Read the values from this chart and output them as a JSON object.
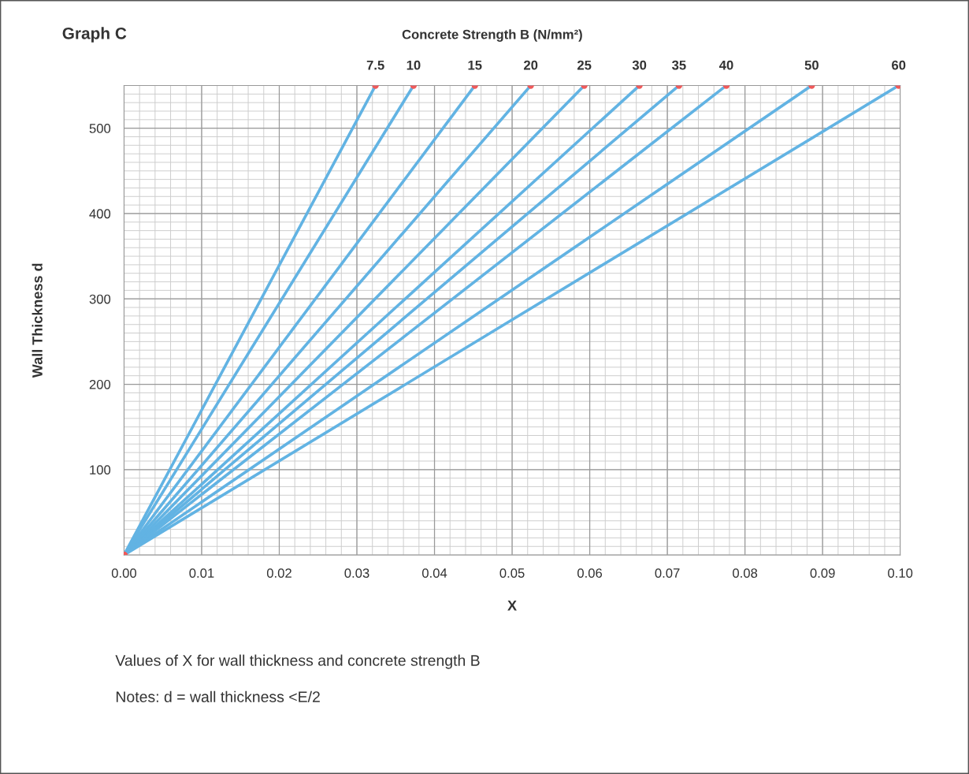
{
  "chart_data": {
    "type": "line",
    "title": "Graph C",
    "x2label": "Concrete Strength B (N/mm²)",
    "xlabel": "X",
    "ylabel": "Wall Thickness d",
    "xlim": [
      0,
      0.1
    ],
    "xticks": [
      {
        "value": 0,
        "label": "0.00"
      },
      {
        "value": 0.01,
        "label": "0.01"
      },
      {
        "value": 0.02,
        "label": "0.02"
      },
      {
        "value": 0.03,
        "label": "0.03"
      },
      {
        "value": 0.04,
        "label": "0.04"
      },
      {
        "value": 0.05,
        "label": "0.05"
      },
      {
        "value": 0.06,
        "label": "0.06"
      },
      {
        "value": 0.07,
        "label": "0.07"
      },
      {
        "value": 0.08,
        "label": "0.08"
      },
      {
        "value": 0.09,
        "label": "0.09"
      },
      {
        "value": 0.1,
        "label": "0.10"
      }
    ],
    "ylim": [
      0,
      550
    ],
    "yticks": [
      100,
      200,
      300,
      400,
      500
    ],
    "grid": true,
    "marker": "circle",
    "line_style": "solid",
    "series": [
      {
        "name": "7.5",
        "color": "#62b3e3",
        "x": [
          0,
          0.0324
        ],
        "values": [
          0,
          550
        ]
      },
      {
        "name": "10",
        "color": "#62b3e3",
        "x": [
          0,
          0.0373
        ],
        "values": [
          0,
          550
        ]
      },
      {
        "name": "15",
        "color": "#62b3e3",
        "x": [
          0,
          0.0452
        ],
        "values": [
          0,
          550
        ]
      },
      {
        "name": "20",
        "color": "#62b3e3",
        "x": [
          0,
          0.0524
        ],
        "values": [
          0,
          550
        ]
      },
      {
        "name": "25",
        "color": "#62b3e3",
        "x": [
          0,
          0.0593
        ],
        "values": [
          0,
          550
        ]
      },
      {
        "name": "30",
        "color": "#62b3e3",
        "x": [
          0,
          0.0664
        ],
        "values": [
          0,
          550
        ]
      },
      {
        "name": "35",
        "color": "#62b3e3",
        "x": [
          0,
          0.0715
        ],
        "values": [
          0,
          550
        ]
      },
      {
        "name": "40",
        "color": "#62b3e3",
        "x": [
          0,
          0.0776
        ],
        "values": [
          0,
          550
        ]
      },
      {
        "name": "50",
        "color": "#62b3e3",
        "x": [
          0,
          0.0886
        ],
        "values": [
          0,
          550
        ]
      },
      {
        "name": "60",
        "color": "#62b3e3",
        "x": [
          0,
          0.0998
        ],
        "values": [
          0,
          550
        ]
      }
    ],
    "annotations": [
      "Values of X for wall thickness and concrete strength B",
      "Notes: d = wall thickness <E/2"
    ]
  }
}
